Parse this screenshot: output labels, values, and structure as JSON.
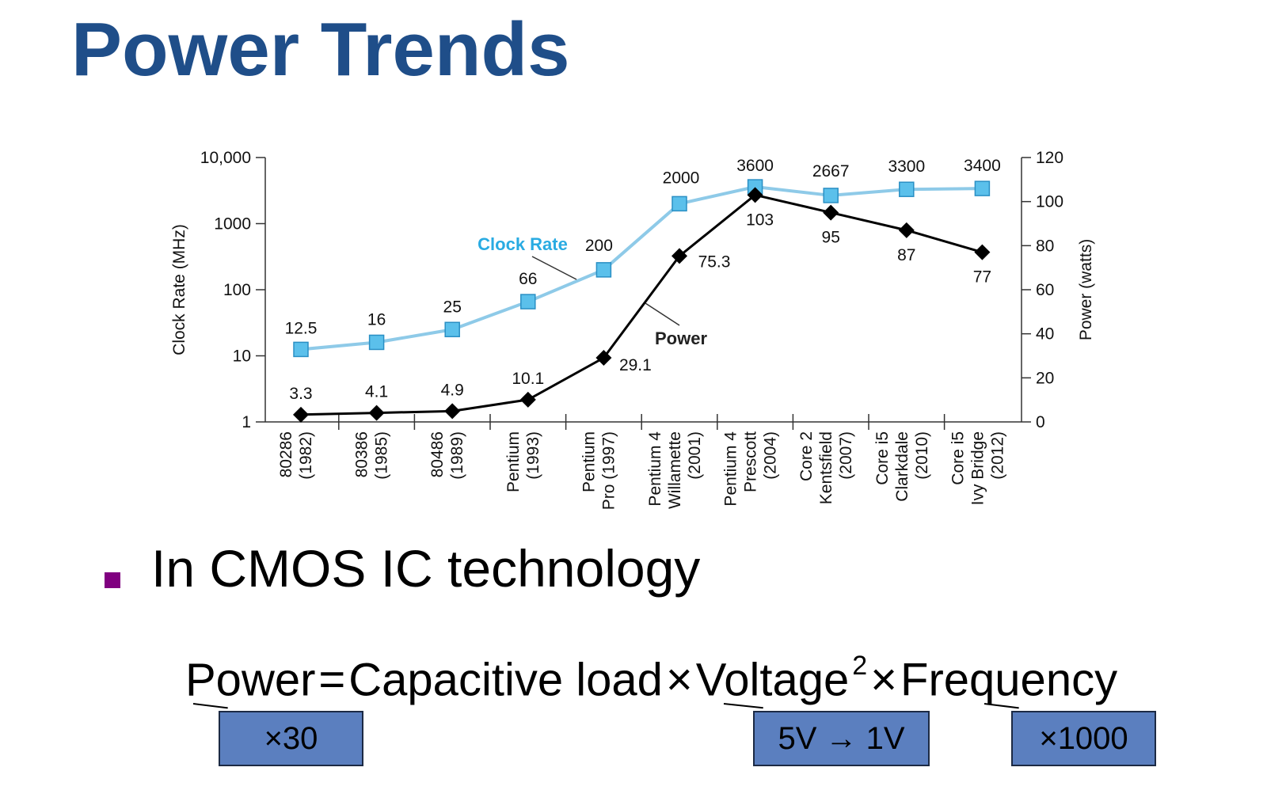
{
  "title": "Power Trends",
  "bullet": "In CMOS IC technology",
  "formula": {
    "lhs": "Power",
    "eq": "=",
    "term1": "Capacitive load",
    "times1": "×",
    "term2": "Voltage",
    "exponent": "2",
    "times2": "×",
    "term3": "Frequency"
  },
  "factors": {
    "capacitive": "×30",
    "voltage": "5V → 1V",
    "frequency": "×1000"
  },
  "colors": {
    "title": "#1f4e89",
    "bullet": "#800080",
    "clock_line": "#8ecae8",
    "clock_marker": "#5bc0eb",
    "clock_label": "#29abe2",
    "power_line": "#000000",
    "factor_box": "#5b7fbf"
  },
  "chart_data": {
    "type": "line",
    "categories": [
      [
        "80286",
        "(1982)"
      ],
      [
        "80386",
        "(1985)"
      ],
      [
        "80486",
        "(1989)"
      ],
      [
        "Pentium",
        "(1993)"
      ],
      [
        "Pentium",
        "Pro (1997)"
      ],
      [
        "Pentium 4",
        "Willamette",
        "(2001)"
      ],
      [
        "Pentium 4",
        "Prescott",
        "(2004)"
      ],
      [
        "Core 2",
        "Kentsfield",
        "(2007)"
      ],
      [
        "Core i5",
        "Clarkdale",
        "(2010)"
      ],
      [
        "Core i5",
        "Ivy Bridge",
        "(2012)"
      ]
    ],
    "series": [
      {
        "name": "Clock Rate",
        "axis": "left",
        "marker": "square",
        "values": [
          12.5,
          16,
          25,
          66,
          200,
          2000,
          3600,
          2667,
          3300,
          3400
        ],
        "labels": [
          "12.5",
          "16",
          "25",
          "66",
          "200",
          "2000",
          "3600",
          "2667",
          "3300",
          "3400"
        ]
      },
      {
        "name": "Power",
        "axis": "right",
        "marker": "diamond",
        "values": [
          3.3,
          4.1,
          4.9,
          10.1,
          29.1,
          75.3,
          103,
          95,
          87,
          77
        ],
        "labels": [
          "3.3",
          "4.1",
          "4.9",
          "10.1",
          "29.1",
          "75.3",
          "103",
          "95",
          "87",
          "77"
        ]
      }
    ],
    "left_axis": {
      "label": "Clock Rate (MHz)",
      "scale": "log",
      "ticks": [
        1,
        10,
        100,
        1000,
        10000
      ],
      "tick_labels": [
        "1",
        "10",
        "100",
        "1000",
        "10,000"
      ]
    },
    "right_axis": {
      "label": "Power (watts)",
      "scale": "linear",
      "ylim": [
        0,
        120
      ],
      "ticks": [
        0,
        20,
        40,
        60,
        80,
        100,
        120
      ],
      "tick_labels": [
        "0",
        "20",
        "40",
        "60",
        "80",
        "100",
        "120"
      ]
    },
    "annotations": [
      "Clock Rate",
      "Power"
    ],
    "grid": false
  }
}
